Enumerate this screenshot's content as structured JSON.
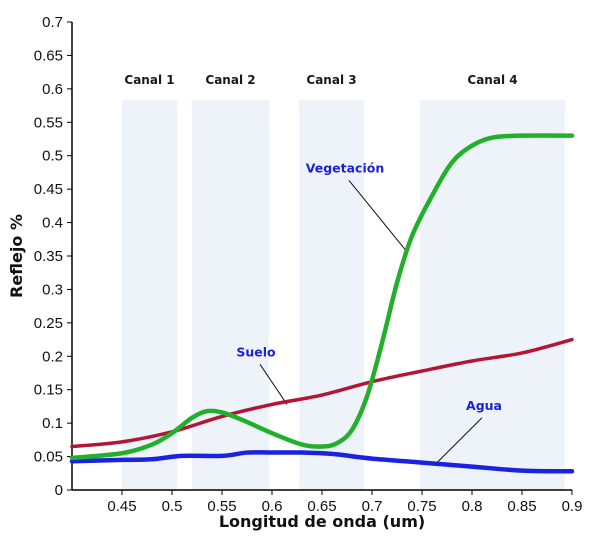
{
  "chart_data": {
    "type": "line",
    "xlabel": "Longitud de onda (um)",
    "ylabel": "Reflejo %",
    "xlim": [
      0.4,
      0.9
    ],
    "ylim": [
      0,
      0.7
    ],
    "x_ticks": [
      "0.45",
      "0.5",
      "0.55",
      "0.6",
      "0.65",
      "0.7",
      "0.75",
      "0.8",
      "0.85",
      "0.9"
    ],
    "y_ticks": [
      "0",
      "0.05",
      "0.1",
      "0.15",
      "0.2",
      "0.25",
      "0.3",
      "0.35",
      "0.4",
      "0.45",
      "0.5",
      "0.55",
      "0.6",
      "0.65",
      "0.7"
    ],
    "grid": false,
    "bands": [
      {
        "label": "Canal 1",
        "x_range": [
          0.45,
          0.505
        ],
        "color": "#eef3fa"
      },
      {
        "label": "Canal 2",
        "x_range": [
          0.52,
          0.597
        ],
        "color": "#eef3fa"
      },
      {
        "label": "Canal 3",
        "x_range": [
          0.627,
          0.692
        ],
        "color": "#eef3fa"
      },
      {
        "label": "Canal 4",
        "x_range": [
          0.748,
          0.893
        ],
        "color": "#eef3fa"
      }
    ],
    "series": [
      {
        "name": "Vegetación",
        "color": "#22b02b",
        "label_at": [
          0.673,
          0.475
        ],
        "pointer_to": [
          0.734,
          0.358
        ],
        "points": [
          [
            0.4,
            0.048
          ],
          [
            0.45,
            0.055
          ],
          [
            0.48,
            0.068
          ],
          [
            0.5,
            0.085
          ],
          [
            0.52,
            0.108
          ],
          [
            0.535,
            0.118
          ],
          [
            0.55,
            0.116
          ],
          [
            0.57,
            0.105
          ],
          [
            0.6,
            0.085
          ],
          [
            0.63,
            0.068
          ],
          [
            0.65,
            0.065
          ],
          [
            0.665,
            0.07
          ],
          [
            0.68,
            0.09
          ],
          [
            0.695,
            0.14
          ],
          [
            0.71,
            0.22
          ],
          [
            0.725,
            0.31
          ],
          [
            0.74,
            0.38
          ],
          [
            0.76,
            0.44
          ],
          [
            0.78,
            0.49
          ],
          [
            0.8,
            0.515
          ],
          [
            0.82,
            0.527
          ],
          [
            0.85,
            0.53
          ],
          [
            0.9,
            0.53
          ]
        ]
      },
      {
        "name": "Suelo",
        "color": "#b31535",
        "label_at": [
          0.584,
          0.2
        ],
        "pointer_to": [
          0.615,
          0.128
        ],
        "points": [
          [
            0.4,
            0.065
          ],
          [
            0.45,
            0.072
          ],
          [
            0.5,
            0.087
          ],
          [
            0.55,
            0.11
          ],
          [
            0.6,
            0.128
          ],
          [
            0.65,
            0.142
          ],
          [
            0.7,
            0.162
          ],
          [
            0.75,
            0.178
          ],
          [
            0.8,
            0.193
          ],
          [
            0.85,
            0.205
          ],
          [
            0.9,
            0.225
          ]
        ]
      },
      {
        "name": "Agua",
        "color": "#1a22e0",
        "label_at": [
          0.812,
          0.12
        ],
        "pointer_to": [
          0.763,
          0.038
        ],
        "points": [
          [
            0.4,
            0.043
          ],
          [
            0.45,
            0.045
          ],
          [
            0.48,
            0.046
          ],
          [
            0.51,
            0.051
          ],
          [
            0.55,
            0.051
          ],
          [
            0.575,
            0.056
          ],
          [
            0.6,
            0.056
          ],
          [
            0.63,
            0.056
          ],
          [
            0.66,
            0.054
          ],
          [
            0.7,
            0.047
          ],
          [
            0.75,
            0.041
          ],
          [
            0.8,
            0.035
          ],
          [
            0.85,
            0.029
          ],
          [
            0.9,
            0.028
          ]
        ]
      }
    ]
  }
}
